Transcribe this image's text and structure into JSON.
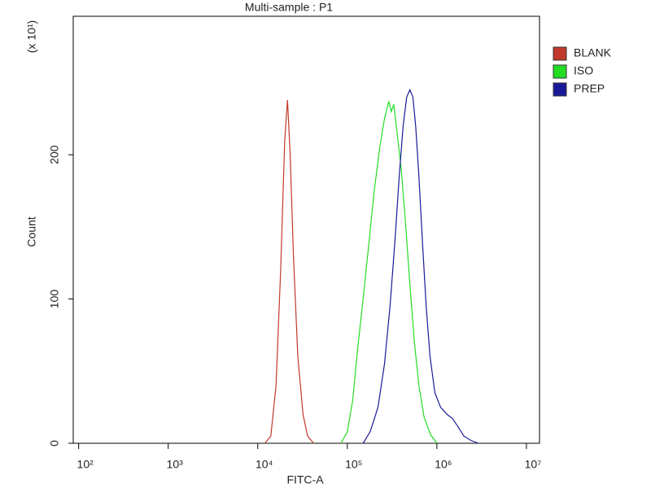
{
  "chart_data": {
    "type": "line",
    "title": "Multi-sample : P1",
    "x_label": "FITC-A",
    "y_label": "Count",
    "y_scale_label": "(x 10¹)",
    "x_log": true,
    "xlim": [
      87,
      14000000
    ],
    "xticks": [
      {
        "value": 100,
        "label": "10²"
      },
      {
        "value": 1000,
        "label": "10³"
      },
      {
        "value": 10000,
        "label": "10⁴"
      },
      {
        "value": 100000,
        "label": "10⁵"
      },
      {
        "value": 1000000,
        "label": "10⁶"
      },
      {
        "value": 10000000,
        "label": "10⁷"
      }
    ],
    "ylim": [
      0,
      296
    ],
    "yticks": [
      0,
      100,
      200
    ],
    "legend": "outside-top-right",
    "series": [
      {
        "name": "BLANK",
        "color": "#c0392b",
        "x": [
          12000,
          14000,
          16000,
          18000,
          20000,
          21500,
          23000,
          25000,
          28000,
          32000,
          36000,
          42000
        ],
        "values": [
          0,
          5,
          40,
          120,
          210,
          238,
          200,
          130,
          60,
          20,
          5,
          0
        ]
      },
      {
        "name": "ISO",
        "color": "#22dd22",
        "x": [
          85000,
          100000,
          115000,
          130000,
          150000,
          175000,
          200000,
          230000,
          260000,
          290000,
          310000,
          330000,
          360000,
          400000,
          450000,
          500000,
          560000,
          630000,
          720000,
          850000,
          1000000
        ],
        "values": [
          0,
          8,
          30,
          65,
          100,
          140,
          175,
          205,
          225,
          237,
          230,
          235,
          215,
          190,
          150,
          110,
          70,
          40,
          18,
          6,
          0
        ]
      },
      {
        "name": "PREP",
        "color": "#1a1a99",
        "x": [
          150000,
          180000,
          220000,
          260000,
          300000,
          340000,
          380000,
          420000,
          460000,
          500000,
          540000,
          580000,
          630000,
          690000,
          760000,
          840000,
          950000,
          1100000,
          1300000,
          1500000,
          1700000,
          2000000,
          2400000,
          2900000
        ],
        "values": [
          0,
          8,
          25,
          55,
          95,
          140,
          185,
          220,
          240,
          245,
          240,
          220,
          185,
          140,
          95,
          60,
          35,
          25,
          20,
          17,
          12,
          5,
          2,
          0
        ]
      }
    ]
  }
}
